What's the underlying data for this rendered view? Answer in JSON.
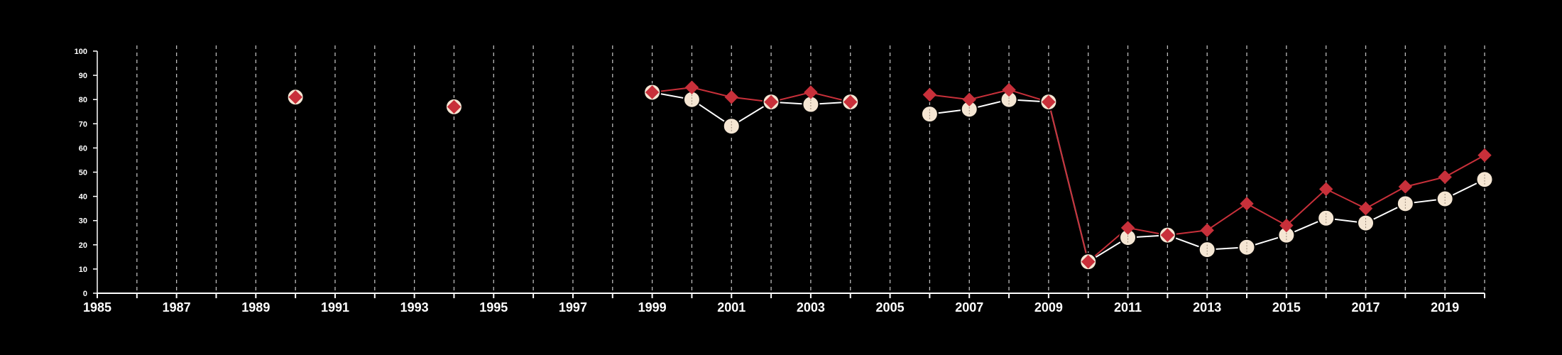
{
  "chart_data": {
    "type": "line",
    "title": "",
    "xlabel": "",
    "ylabel": "",
    "xlim": [
      1985,
      2020
    ],
    "ylim": [
      0,
      100
    ],
    "x_ticks": [
      1985,
      1987,
      1989,
      1991,
      1993,
      1995,
      1997,
      1999,
      2001,
      2003,
      2005,
      2007,
      2009,
      2011,
      2013,
      2015,
      2017,
      2019
    ],
    "x_tick_labels": [
      "1985",
      "1987",
      "1989",
      "1991",
      "1993",
      "1995",
      "1997",
      "1999",
      "2001",
      "2003",
      "2005",
      "2007",
      "2009",
      "2011",
      "2013",
      "2015",
      "2017",
      "2019"
    ],
    "y_ticks": [
      0,
      10,
      20,
      30,
      40,
      50,
      60,
      70,
      80,
      90,
      100
    ],
    "y_tick_labels": [
      "0",
      "10",
      "20",
      "30",
      "40",
      "50",
      "60",
      "70",
      "80",
      "90",
      "100"
    ],
    "grid": "vertical dashed lines at every year",
    "legend": "none",
    "series": [
      {
        "marker": "circle",
        "color": "#f5e6d3",
        "points": [
          [
            1990,
            81
          ],
          [
            1994,
            77
          ],
          [
            1999,
            83
          ],
          [
            2000,
            80
          ],
          [
            2001,
            69
          ],
          [
            2002,
            79
          ],
          [
            2003,
            78
          ],
          [
            2004,
            79
          ],
          [
            2006,
            74
          ],
          [
            2007,
            76
          ],
          [
            2008,
            80
          ],
          [
            2009,
            79
          ],
          [
            2010,
            13
          ],
          [
            2011,
            23
          ],
          [
            2012,
            24
          ],
          [
            2013,
            18
          ],
          [
            2014,
            19
          ],
          [
            2015,
            24
          ],
          [
            2016,
            31
          ],
          [
            2017,
            29
          ],
          [
            2018,
            37
          ],
          [
            2019,
            39
          ],
          [
            2020,
            47
          ]
        ]
      },
      {
        "marker": "diamond",
        "color": "#c8303a",
        "points": [
          [
            1990,
            81
          ],
          [
            1994,
            77
          ],
          [
            1999,
            83
          ],
          [
            2000,
            85
          ],
          [
            2001,
            81
          ],
          [
            2002,
            79
          ],
          [
            2003,
            83
          ],
          [
            2004,
            79
          ],
          [
            2006,
            82
          ],
          [
            2007,
            80
          ],
          [
            2008,
            84
          ],
          [
            2009,
            79
          ],
          [
            2010,
            13
          ],
          [
            2011,
            27
          ],
          [
            2012,
            24
          ],
          [
            2013,
            26
          ],
          [
            2014,
            37
          ],
          [
            2015,
            28
          ],
          [
            2016,
            43
          ],
          [
            2017,
            35
          ],
          [
            2018,
            44
          ],
          [
            2019,
            48
          ],
          [
            2020,
            57
          ]
        ]
      }
    ]
  },
  "colors": {
    "background": "#000000",
    "axis": "#ffffff",
    "grid": "#bbbbbb",
    "circle_fill": "#f5e6d3",
    "diamond_fill": "#c8303a"
  }
}
